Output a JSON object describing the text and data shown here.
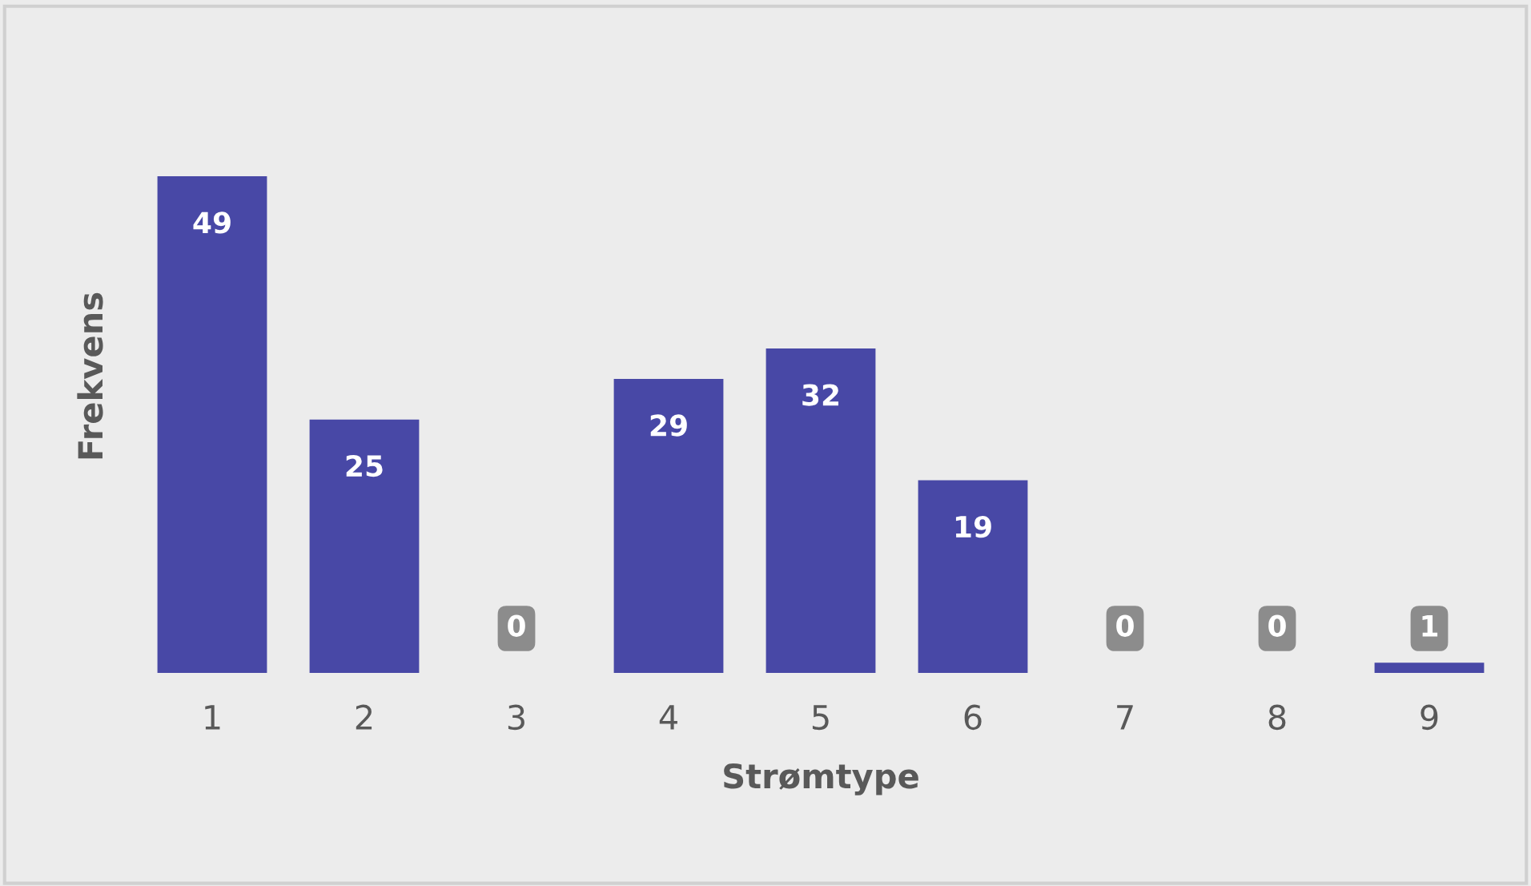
{
  "chart_data": {
    "type": "bar",
    "xlabel": "Strømtype",
    "ylabel": "Frekvens",
    "categories": [
      "1",
      "2",
      "3",
      "4",
      "5",
      "6",
      "7",
      "8",
      "9"
    ],
    "values": [
      49,
      25,
      0,
      29,
      32,
      19,
      0,
      0,
      1
    ],
    "color": "#4848a6",
    "data_labels": true,
    "grid": false,
    "legend": false
  }
}
